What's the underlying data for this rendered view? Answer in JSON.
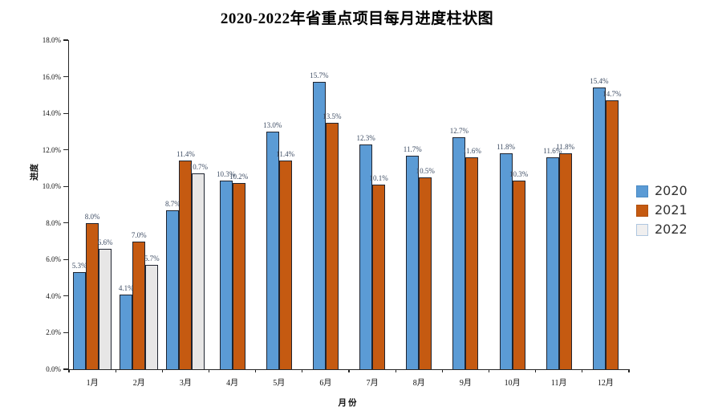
{
  "title": "2020-2022年省重点项目每月进度柱状图",
  "chart_data": {
    "type": "bar",
    "title": "2020-2022年省重点项目每月进度柱状图",
    "xlabel": "月份",
    "ylabel": "进度",
    "ylim": [
      0,
      18
    ],
    "grid": false,
    "legend_position": "right",
    "categories": [
      "1月",
      "2月",
      "3月",
      "4月",
      "5月",
      "6月",
      "7月",
      "8月",
      "9月",
      "10月",
      "11月",
      "12月"
    ],
    "y_ticks": [
      {
        "v": 0,
        "label": "0.0%"
      },
      {
        "v": 2,
        "label": "2.0%"
      },
      {
        "v": 4,
        "label": "4.0%"
      },
      {
        "v": 6,
        "label": "6.0%"
      },
      {
        "v": 8,
        "label": "8.0%"
      },
      {
        "v": 10,
        "label": "10.0%"
      },
      {
        "v": 12,
        "label": "12.0%"
      },
      {
        "v": 14,
        "label": "14.0%"
      },
      {
        "v": 16,
        "label": "16.0%"
      },
      {
        "v": 18,
        "label": "18.0%"
      }
    ],
    "series": [
      {
        "name": "2020",
        "color": "#5B9BD5",
        "values": [
          5.3,
          4.1,
          8.7,
          10.3,
          13.0,
          15.7,
          12.3,
          11.7,
          12.7,
          11.8,
          11.6,
          15.4
        ],
        "labels": [
          "5.3%",
          "4.1%",
          "8.7%",
          "10.3%",
          "13.0%",
          "15.7%",
          "12.3%",
          "11.7%",
          "12.7%",
          "11.8%",
          "11.6%",
          "15.4%"
        ]
      },
      {
        "name": "2021",
        "color": "#C55A11",
        "values": [
          8.0,
          7.0,
          11.4,
          10.2,
          11.4,
          13.5,
          10.1,
          10.5,
          11.6,
          10.3,
          11.8,
          14.7
        ],
        "labels": [
          "8.0%",
          "7.0%",
          "11.4%",
          "10.2%",
          "11.4%",
          "13.5%",
          "10.1%",
          "10.5%",
          "11.6%",
          "10.3%",
          "11.8%",
          "14.7%"
        ]
      },
      {
        "name": "2022",
        "color": "#E7E6E6",
        "values": [
          6.6,
          5.7,
          10.7,
          null,
          null,
          null,
          null,
          null,
          null,
          null,
          null,
          null
        ],
        "labels": [
          "6.6%",
          "5.7%",
          "10.7%",
          "",
          "",
          "",
          "",
          "",
          "",
          "",
          "",
          ""
        ]
      }
    ]
  },
  "legend": {
    "entries": [
      {
        "label": "2020",
        "fill": "#5B9BD5",
        "border": "#4A8AC4"
      },
      {
        "label": "2021",
        "fill": "#C55A11",
        "border": "#B04F0E"
      },
      {
        "label": "2022",
        "fill": "#F0EFEF",
        "border": "#AFC7E0"
      }
    ]
  },
  "style": {
    "bar_border": "#1F2430",
    "axis_color": "#262626",
    "data_label_color": "#3d4c63"
  }
}
